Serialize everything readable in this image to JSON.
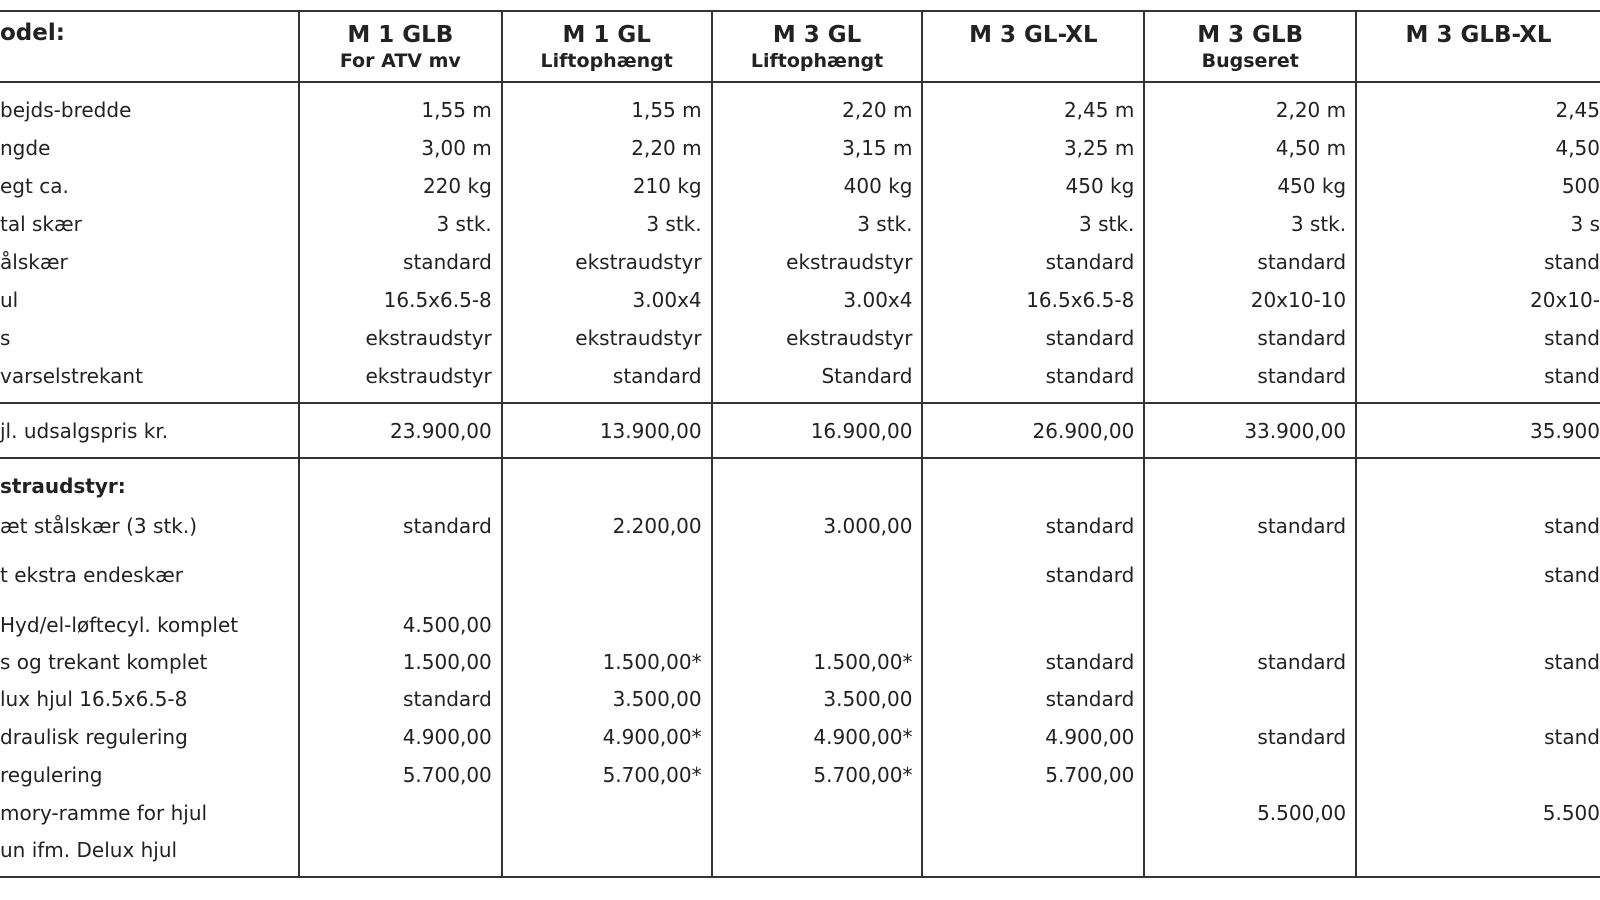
{
  "header": {
    "label": "odel:",
    "models": [
      {
        "name": "M 1 GLB",
        "sub": "For ATV mv"
      },
      {
        "name": "M 1 GL",
        "sub": "Liftophængt"
      },
      {
        "name": "M 3 GL",
        "sub": "Liftophængt"
      },
      {
        "name": "M 3 GL-XL",
        "sub": ""
      },
      {
        "name": "M 3 GLB",
        "sub": "Bugseret"
      },
      {
        "name": "M 3 GLB-XL",
        "sub": ""
      }
    ]
  },
  "specs": [
    {
      "label": "bejds-bredde",
      "values": [
        "1,55 m",
        "1,55 m",
        "2,20 m",
        "2,45 m",
        "2,20 m",
        "2,45"
      ]
    },
    {
      "label": "ngde",
      "values": [
        "3,00 m",
        "2,20 m",
        "3,15 m",
        "3,25 m",
        "4,50 m",
        "4,50"
      ]
    },
    {
      "label": "egt ca.",
      "values": [
        "220 kg",
        "210 kg",
        "400 kg",
        "450 kg",
        "450 kg",
        "500"
      ]
    },
    {
      "label": "tal skær",
      "values": [
        "3 stk.",
        "3 stk.",
        "3 stk.",
        "3 stk.",
        "3 stk.",
        "3 s"
      ]
    },
    {
      "label": "ålskær",
      "values": [
        "standard",
        "ekstraudstyr",
        "ekstraudstyr",
        "standard",
        "standard",
        "stand"
      ]
    },
    {
      "label": "ul",
      "values": [
        "16.5x6.5-8",
        "3.00x4",
        "3.00x4",
        "16.5x6.5-8",
        "20x10-10",
        "20x10-"
      ]
    },
    {
      "label": "s",
      "values": [
        "ekstraudstyr",
        "ekstraudstyr",
        "ekstraudstyr",
        "standard",
        "standard",
        "stand"
      ]
    },
    {
      "label": "varselstrekant",
      "values": [
        "ekstraudstyr",
        "standard",
        "Standard",
        "standard",
        "standard",
        "stand"
      ]
    }
  ],
  "price": {
    "label": "jl. udsalgspris kr.",
    "values": [
      "23.900,00",
      "13.900,00",
      "16.900,00",
      "26.900,00",
      "33.900,00",
      "35.900"
    ]
  },
  "extras": {
    "title": "straudstyr:",
    "rows": [
      {
        "label": "æt stålskær (3 stk.)",
        "values": [
          "standard",
          "2.200,00",
          "3.000,00",
          "standard",
          "standard",
          "stand"
        ]
      },
      {
        "label": "t ekstra endeskær",
        "values": [
          "",
          "",
          "",
          "standard",
          "",
          "stand"
        ]
      },
      {
        "label": "Hyd/el-løftecyl. komplet",
        "values": [
          "4.500,00",
          "",
          "",
          "",
          "",
          ""
        ]
      },
      {
        "label": "s og trekant komplet",
        "values": [
          "1.500,00",
          "1.500,00*",
          "1.500,00*",
          "standard",
          "standard",
          "stand"
        ]
      },
      {
        "label": "lux hjul 16.5x6.5-8",
        "values": [
          "standard",
          "3.500,00",
          "3.500,00",
          "standard",
          "",
          ""
        ]
      },
      {
        "label": "draulisk regulering",
        "values": [
          "4.900,00",
          "4.900,00*",
          "4.900,00*",
          "4.900,00",
          "standard",
          "stand"
        ]
      },
      {
        "label": "regulering",
        "values": [
          "5.700,00",
          "5.700,00*",
          "5.700,00*",
          "5.700,00",
          "",
          ""
        ]
      },
      {
        "label": "mory-ramme for hjul",
        "values": [
          "",
          "",
          "",
          "",
          "5.500,00",
          "5.500"
        ]
      },
      {
        "label": "un ifm. Delux hjul",
        "values": [
          "",
          "",
          "",
          "",
          "",
          ""
        ]
      }
    ]
  }
}
